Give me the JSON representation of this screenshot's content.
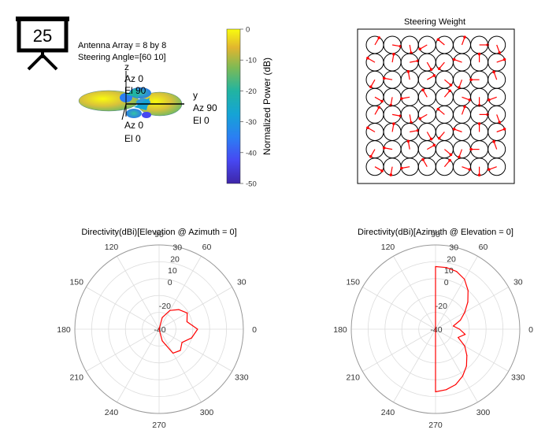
{
  "badge": {
    "number": "25",
    "icon": "presentation-board-icon"
  },
  "pattern3d": {
    "line1": "Antenna Array = 8 by 8",
    "line2": "Steering Angle=[60 10]",
    "axis_z": "z",
    "axis_y": "y",
    "label_z_az": "Az 0",
    "label_z_el": "El 90",
    "label_y_az": "Az 90",
    "label_y_el": "El 0",
    "label_x_az": "Az 0",
    "label_x_el": "El 0",
    "colorbar_label": "Normalized Power (dB)",
    "colorbar_ticks": [
      "0",
      "-10",
      "-20",
      "-30",
      "-40",
      "-50"
    ],
    "colorbar_values": [
      0,
      -10,
      -20,
      -30,
      -40,
      -50
    ],
    "colors": {
      "high": "#f9fb0e",
      "mid": "#21b4a1",
      "low": "#3e26a8"
    }
  },
  "steering": {
    "title": "Steering Weight",
    "rows": 8,
    "cols": 8,
    "colors": {
      "circle": "#000000",
      "weight": "#ff0000"
    },
    "phase_deg": [
      [
        60,
        350,
        280,
        210,
        140,
        70,
        0,
        290
      ],
      [
        150,
        80,
        10,
        300,
        230,
        160,
        90,
        20
      ],
      [
        240,
        170,
        100,
        30,
        320,
        250,
        180,
        110
      ],
      [
        330,
        260,
        190,
        120,
        50,
        340,
        270,
        200
      ],
      [
        60,
        350,
        280,
        210,
        140,
        70,
        0,
        290
      ],
      [
        150,
        80,
        10,
        300,
        230,
        160,
        90,
        20
      ],
      [
        240,
        170,
        100,
        30,
        320,
        250,
        180,
        110
      ],
      [
        330,
        260,
        190,
        120,
        50,
        340,
        270,
        200
      ]
    ]
  },
  "polar_elevation": {
    "title": "Directivity(dBi)[Elevation @ Azimuth = 0]",
    "angle_labels": [
      "0",
      "30",
      "60",
      "90",
      "120",
      "150",
      "180",
      "210",
      "240",
      "270",
      "300",
      "330"
    ],
    "radial_labels": [
      "30",
      "20",
      "10",
      "0",
      "-20",
      "-40"
    ],
    "chart_data": {
      "type": "line",
      "polar": true,
      "theta_deg": [
        0,
        15,
        30,
        45,
        60,
        75,
        90,
        105,
        120,
        135,
        150,
        165,
        180,
        195,
        210,
        225,
        240,
        255,
        270,
        285,
        300,
        315,
        330,
        345
      ],
      "r_dbi": [
        -8,
        -16,
        -13,
        -17,
        -22,
        -30,
        -40,
        -40,
        -40,
        -40,
        -40,
        -40,
        -40,
        -40,
        -40,
        -40,
        -40,
        -40,
        -40,
        -30,
        -17,
        -15,
        -18,
        -12
      ],
      "color": "#ff0000"
    }
  },
  "polar_azimuth": {
    "title": "Directivity(dBi)[Azimuth @ Elevation = 0]",
    "angle_labels": [
      "0",
      "30",
      "60",
      "90",
      "120",
      "150",
      "180",
      "210",
      "240",
      "270",
      "300",
      "330"
    ],
    "radial_labels": [
      "30",
      "20",
      "10",
      "0",
      "-20",
      "-40"
    ],
    "chart_data": {
      "type": "line",
      "polar": true,
      "theta_deg": [
        0,
        10,
        20,
        30,
        40,
        50,
        60,
        70,
        80,
        90,
        270,
        280,
        290,
        300,
        310,
        320,
        330,
        340,
        350
      ],
      "r_dbi": [
        -20,
        -25,
        -18,
        -12,
        -5,
        2,
        8,
        11,
        12,
        12,
        12,
        11,
        9,
        5,
        0,
        -6,
        -12,
        -20,
        -15
      ],
      "color": "#ff0000"
    }
  }
}
